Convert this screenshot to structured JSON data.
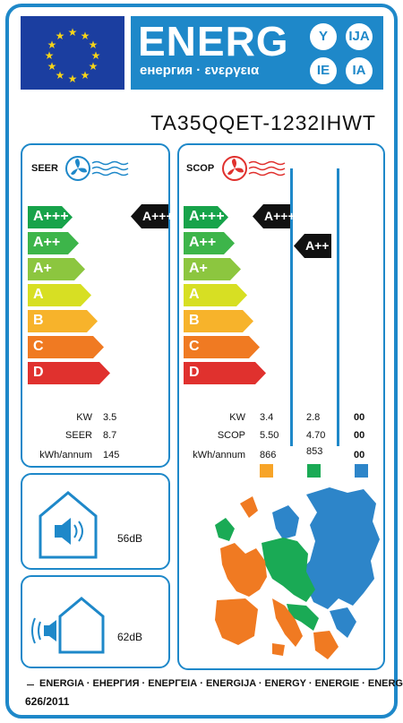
{
  "header": {
    "title": "ENERG",
    "subtitle": "енергия · ενεργεια",
    "lang": [
      "Y",
      "IJA",
      "IE",
      "IA"
    ]
  },
  "model": "TA35QQET-1232IHWT",
  "scale": [
    {
      "label": "A+++",
      "color": "#17a34a"
    },
    {
      "label": "A++",
      "color": "#3db54a"
    },
    {
      "label": "A+",
      "color": "#8cc63f"
    },
    {
      "label": "A",
      "color": "#d7df23"
    },
    {
      "label": "B",
      "color": "#f7b32b"
    },
    {
      "label": "C",
      "color": "#f07a22"
    },
    {
      "label": "D",
      "color": "#e0312e"
    }
  ],
  "cooling": {
    "title": "SEER",
    "class": "A+++",
    "rows": [
      {
        "label": "KW",
        "value": "3.5"
      },
      {
        "label": "SEER",
        "value": "8.7"
      },
      {
        "label": "kWh/annum",
        "value": "145"
      }
    ]
  },
  "heating": {
    "title": "SCOP",
    "classes": [
      "A+++",
      "A++"
    ],
    "rows": [
      {
        "label": "KW",
        "values": [
          "3.4",
          "2.8",
          "00"
        ]
      },
      {
        "label": "SCOP",
        "values": [
          "5.50",
          "4.70",
          "00"
        ]
      },
      {
        "label": "kWh/annum",
        "values": [
          "866",
          "853",
          "00"
        ]
      }
    ],
    "zone_colors": [
      "#f7a428",
      "#1aaa55",
      "#2d85c9"
    ]
  },
  "noise": {
    "indoor": "56dB",
    "outdoor": "62dB"
  },
  "footer": {
    "languages": "ENERGIA · ЕНЕРГИЯ · ΕΝΕΡΓΕΙΑ · ENERGIJA · ENERGY · ENERGIE · ENERGI",
    "regulation": "626/2011"
  },
  "colors": {
    "frame": "#1e88c9",
    "class_marker": "#111111"
  }
}
